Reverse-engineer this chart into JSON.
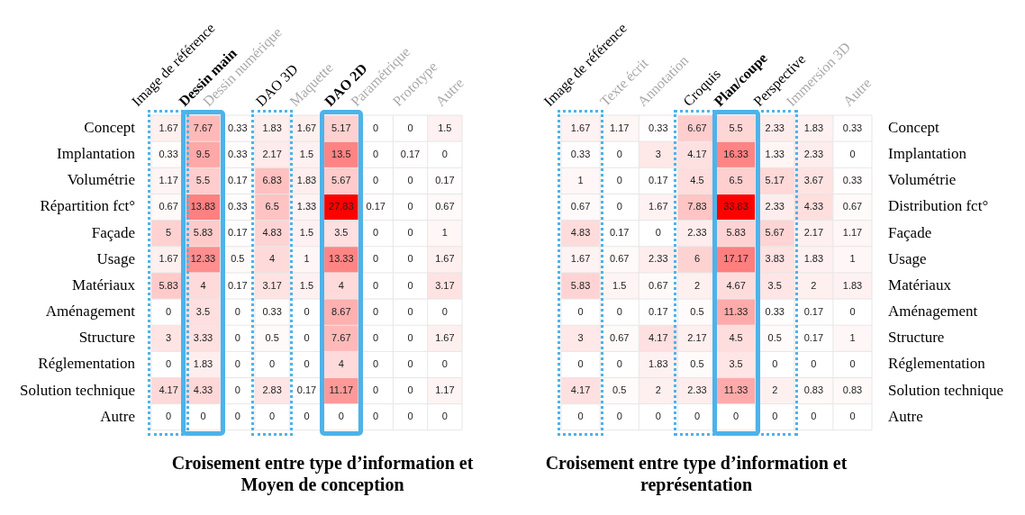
{
  "chart_data": [
    {
      "type": "heatmap",
      "title": "Croisement entre type d’information et Moyen de conception",
      "color": "#ff0000",
      "data_labels": true,
      "categories": [
        "Image de référence",
        "Dessin main",
        "Dessin numérique",
        "DAO 3D",
        "Maquette",
        "DAO 2D",
        "Paramétrique",
        "Prototype",
        "Autre"
      ],
      "y_categories": [
        "Concept",
        "Implantation",
        "Volumétrie",
        "Répartition fct°",
        "Façade",
        "Usage",
        "Matériaux",
        "Aménagement",
        "Structure",
        "Réglementation",
        "Solution technique",
        "Autre"
      ],
      "cells": [
        [
          1.67,
          7.67,
          0.33,
          1.83,
          1.67,
          5.17,
          0,
          0,
          1.5
        ],
        [
          0.33,
          9.5,
          0.33,
          2.17,
          1.5,
          13.5,
          0,
          0.17,
          0
        ],
        [
          1.17,
          5.5,
          0.17,
          6.83,
          1.83,
          5.67,
          0,
          0,
          0.17
        ],
        [
          0.67,
          13.83,
          0.33,
          6.5,
          1.33,
          27.83,
          0.17,
          0,
          0.67
        ],
        [
          5,
          5.83,
          0.17,
          4.83,
          1.5,
          3.5,
          0,
          0,
          1
        ],
        [
          1.67,
          12.33,
          0.5,
          4,
          1,
          13.33,
          0,
          0,
          1.67
        ],
        [
          5.83,
          4,
          0.17,
          3.17,
          1.5,
          4,
          0,
          0,
          3.17
        ],
        [
          0,
          3.5,
          0,
          0.33,
          0,
          8.67,
          0,
          0,
          0
        ],
        [
          3,
          3.33,
          0,
          0.5,
          0,
          7.67,
          0,
          0,
          1.67
        ],
        [
          0,
          1.83,
          0,
          0,
          0,
          4,
          0,
          0,
          0
        ],
        [
          4.17,
          4.33,
          0,
          2.83,
          0.17,
          11.17,
          0,
          0,
          1.17
        ],
        [
          0,
          0,
          0,
          0,
          0,
          0,
          0,
          0,
          0
        ]
      ]
    },
    {
      "type": "heatmap",
      "title": "Croisement entre type d’information et représentation",
      "color": "#ff0000",
      "data_labels": true,
      "categories": [
        "Image de référence",
        "Texte écrit",
        "Annotation",
        "Croquis",
        "Plan/coupe",
        "Perspective",
        "Immersion 3D",
        "Autre"
      ],
      "y_categories": [
        "Concept",
        "Implantation",
        "Volumétrie",
        "Distribution fct°",
        "Façade",
        "Usage",
        "Matériaux",
        "Aménagement",
        "Structure",
        "Réglementation",
        "Solution technique",
        "Autre"
      ],
      "cells": [
        [
          1.67,
          1.17,
          0.33,
          6.67,
          5.5,
          2.33,
          1.83,
          0.33
        ],
        [
          0.33,
          0,
          3,
          4.17,
          16.33,
          1.33,
          2.33,
          0
        ],
        [
          1,
          0,
          0.17,
          4.5,
          6.5,
          5.17,
          3.67,
          0.33
        ],
        [
          0.67,
          0,
          1.67,
          7.83,
          33.83,
          2.33,
          4.33,
          0.67
        ],
        [
          4.83,
          0.17,
          0,
          2.33,
          5.83,
          5.67,
          2.17,
          1.17
        ],
        [
          1.67,
          0.67,
          2.33,
          6,
          17.17,
          3.83,
          1.83,
          1
        ],
        [
          5.83,
          1.5,
          0.67,
          2,
          4.67,
          3.5,
          2,
          1.83
        ],
        [
          0,
          0,
          0.17,
          0.5,
          11.33,
          0.33,
          0.17,
          0
        ],
        [
          3,
          0.67,
          4.17,
          2.17,
          4.5,
          0.5,
          0.17,
          1
        ],
        [
          0,
          0,
          1.83,
          0.5,
          3.5,
          0,
          0,
          0
        ],
        [
          4.17,
          0.5,
          2,
          2.33,
          11.33,
          2,
          0.83,
          0.83
        ],
        [
          0,
          0,
          0,
          0,
          0,
          0,
          0,
          0
        ]
      ]
    }
  ]
}
